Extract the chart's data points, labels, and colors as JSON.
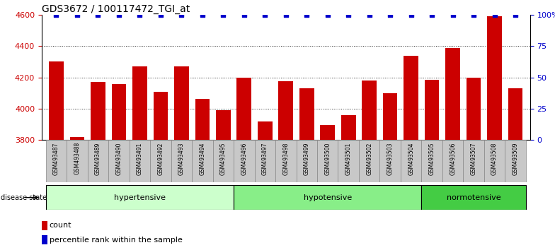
{
  "title": "GDS3672 / 100117472_TGI_at",
  "samples": [
    "GSM493487",
    "GSM493488",
    "GSM493489",
    "GSM493490",
    "GSM493491",
    "GSM493492",
    "GSM493493",
    "GSM493494",
    "GSM493495",
    "GSM493496",
    "GSM493497",
    "GSM493498",
    "GSM493499",
    "GSM493500",
    "GSM493501",
    "GSM493502",
    "GSM493503",
    "GSM493504",
    "GSM493505",
    "GSM493506",
    "GSM493507",
    "GSM493508",
    "GSM493509"
  ],
  "counts": [
    4305,
    3820,
    4170,
    4160,
    4270,
    4110,
    4270,
    4065,
    3990,
    4200,
    3920,
    4175,
    4130,
    3895,
    3960,
    4180,
    4100,
    4340,
    4185,
    4390,
    4200,
    4590,
    4130
  ],
  "percentiles": [
    100,
    100,
    100,
    100,
    100,
    100,
    100,
    100,
    100,
    100,
    100,
    100,
    100,
    100,
    100,
    100,
    100,
    100,
    100,
    100,
    100,
    100,
    100
  ],
  "groups": [
    {
      "label": "hypertensive",
      "start": 0,
      "end": 9,
      "color": "#ccffcc"
    },
    {
      "label": "hypotensive",
      "start": 9,
      "end": 18,
      "color": "#88ee88"
    },
    {
      "label": "normotensive",
      "start": 18,
      "end": 23,
      "color": "#44cc44"
    }
  ],
  "bar_color": "#cc0000",
  "dot_color": "#0000cc",
  "ylim_left": [
    3800,
    4600
  ],
  "ylim_right": [
    0,
    100
  ],
  "yticks_left": [
    3800,
    4000,
    4200,
    4400,
    4600
  ],
  "yticks_right": [
    0,
    25,
    50,
    75,
    100
  ],
  "ytick_labels_right": [
    "0",
    "25",
    "50",
    "75",
    "100%"
  ],
  "ylabel_left_color": "#cc0000",
  "ylabel_right_color": "#0000cc",
  "disease_state_label": "disease state",
  "legend_count_label": "count",
  "legend_pct_label": "percentile rank within the sample",
  "bg_color": "#ffffff",
  "title_fontsize": 10,
  "tick_fontsize": 7,
  "bar_width": 0.7,
  "gridline_values": [
    4000,
    4200,
    4400
  ],
  "gridline_color": "#333333",
  "gridline_style": ":"
}
